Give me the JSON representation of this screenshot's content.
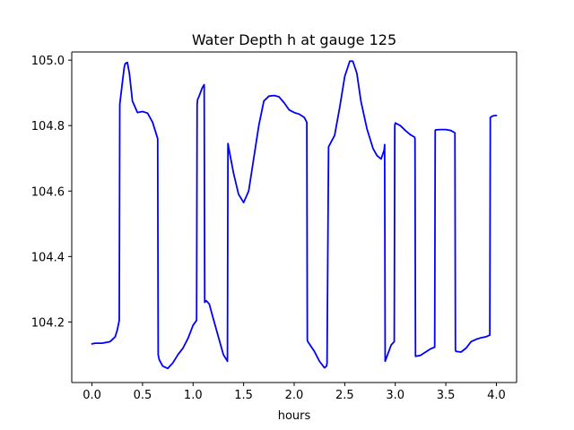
{
  "chart_data": {
    "type": "line",
    "title": "Water Depth h at gauge 125",
    "xlabel": "hours",
    "ylabel": "",
    "xlim": [
      -0.2,
      4.2
    ],
    "ylim": [
      104.015,
      105.025
    ],
    "x_ticks": [
      0.0,
      0.5,
      1.0,
      1.5,
      2.0,
      2.5,
      3.0,
      3.5,
      4.0
    ],
    "x_tick_labels": [
      "0.0",
      "0.5",
      "1.0",
      "1.5",
      "2.0",
      "2.5",
      "3.0",
      "3.5",
      "4.0"
    ],
    "y_ticks": [
      104.2,
      104.4,
      104.6,
      104.8,
      105.0
    ],
    "y_tick_labels": [
      "104.2",
      "104.4",
      "104.6",
      "104.8",
      "105.0"
    ],
    "grid": false,
    "legend": "none",
    "colors": {
      "line": "#0000ff",
      "axes": "#000000",
      "background": "#ffffff"
    },
    "series": [
      {
        "x": [
          0.0,
          0.03,
          0.1,
          0.18,
          0.23,
          0.25,
          0.27,
          0.275,
          0.3,
          0.32,
          0.33,
          0.35,
          0.37,
          0.4,
          0.45,
          0.5,
          0.55,
          0.6,
          0.65,
          0.655,
          0.665,
          0.7,
          0.75,
          0.8,
          0.85,
          0.9,
          0.95,
          1.0,
          1.035,
          1.04,
          1.045,
          1.06,
          1.09,
          1.11,
          1.115,
          1.13,
          1.16,
          1.2,
          1.25,
          1.3,
          1.34,
          1.345,
          1.36,
          1.4,
          1.45,
          1.5,
          1.55,
          1.6,
          1.65,
          1.7,
          1.75,
          1.8,
          1.85,
          1.9,
          1.95,
          2.0,
          2.05,
          2.1,
          2.125,
          2.13,
          2.135,
          2.2,
          2.25,
          2.3,
          2.32,
          2.325,
          2.34,
          2.4,
          2.45,
          2.5,
          2.55,
          2.58,
          2.62,
          2.66,
          2.72,
          2.78,
          2.82,
          2.86,
          2.89,
          2.895,
          2.9,
          2.93,
          2.96,
          2.99,
          2.995,
          3.0,
          3.05,
          3.1,
          3.15,
          3.19,
          3.195,
          3.2,
          3.25,
          3.3,
          3.35,
          3.39,
          3.395,
          3.4,
          3.45,
          3.5,
          3.55,
          3.59,
          3.595,
          3.6,
          3.65,
          3.7,
          3.75,
          3.8,
          3.85,
          3.9,
          3.935,
          3.94,
          3.95,
          3.97,
          4.0
        ],
        "y": [
          104.133,
          104.135,
          104.135,
          104.14,
          104.155,
          104.175,
          104.205,
          104.865,
          104.93,
          104.98,
          104.99,
          104.993,
          104.96,
          104.875,
          104.84,
          104.843,
          104.838,
          104.81,
          104.76,
          104.1,
          104.085,
          104.065,
          104.058,
          104.075,
          104.1,
          104.12,
          104.15,
          104.19,
          104.205,
          104.865,
          104.88,
          104.89,
          104.915,
          104.925,
          104.26,
          104.265,
          104.255,
          104.21,
          104.155,
          104.1,
          104.08,
          104.745,
          104.72,
          104.655,
          104.59,
          104.565,
          104.6,
          104.7,
          104.8,
          104.875,
          104.89,
          104.892,
          104.888,
          104.87,
          104.848,
          104.84,
          104.835,
          104.825,
          104.81,
          104.145,
          104.14,
          104.11,
          104.08,
          104.06,
          104.065,
          104.075,
          104.735,
          104.77,
          104.855,
          104.95,
          104.997,
          104.997,
          104.96,
          104.875,
          104.79,
          104.73,
          104.708,
          104.698,
          104.725,
          104.742,
          104.08,
          104.105,
          104.13,
          104.14,
          104.8,
          104.808,
          104.8,
          104.785,
          104.772,
          104.765,
          104.76,
          104.095,
          104.098,
          104.108,
          104.118,
          104.123,
          104.785,
          104.787,
          104.788,
          104.788,
          104.785,
          104.778,
          104.115,
          104.11,
          104.108,
          104.12,
          104.14,
          104.147,
          104.152,
          104.155,
          104.16,
          104.825,
          104.827,
          104.83,
          104.831
        ]
      }
    ]
  }
}
